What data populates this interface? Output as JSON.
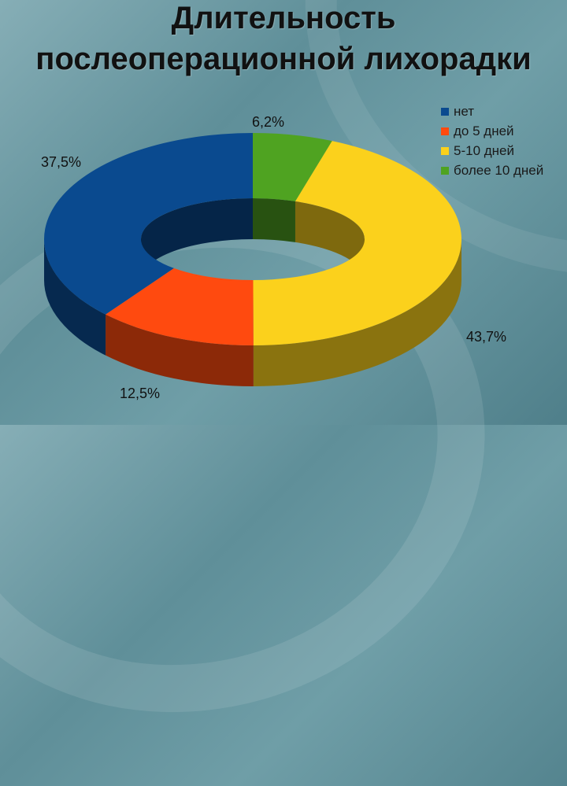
{
  "title_line1": "Длительность",
  "title_line2": "послеоперационной лихорадки",
  "chart_data": {
    "type": "pie",
    "title": "Длительность послеоперационной лихорадки",
    "categories": [
      "нет",
      "до 5 дней",
      "5-10 дней",
      "более 10 дней"
    ],
    "values": [
      37.5,
      12.5,
      43.7,
      6.2
    ],
    "labels": [
      "37,5%",
      "12,5%",
      "43,7%",
      "6,2%"
    ],
    "colors": [
      "#0a4a8f",
      "#ff4a0f",
      "#fbd11c",
      "#4fa321"
    ],
    "legend_entries": [
      "нет",
      "до 5 дней",
      "5-10 дней",
      "более 10 дней"
    ],
    "legend_placement": "top-right",
    "donut": true
  }
}
